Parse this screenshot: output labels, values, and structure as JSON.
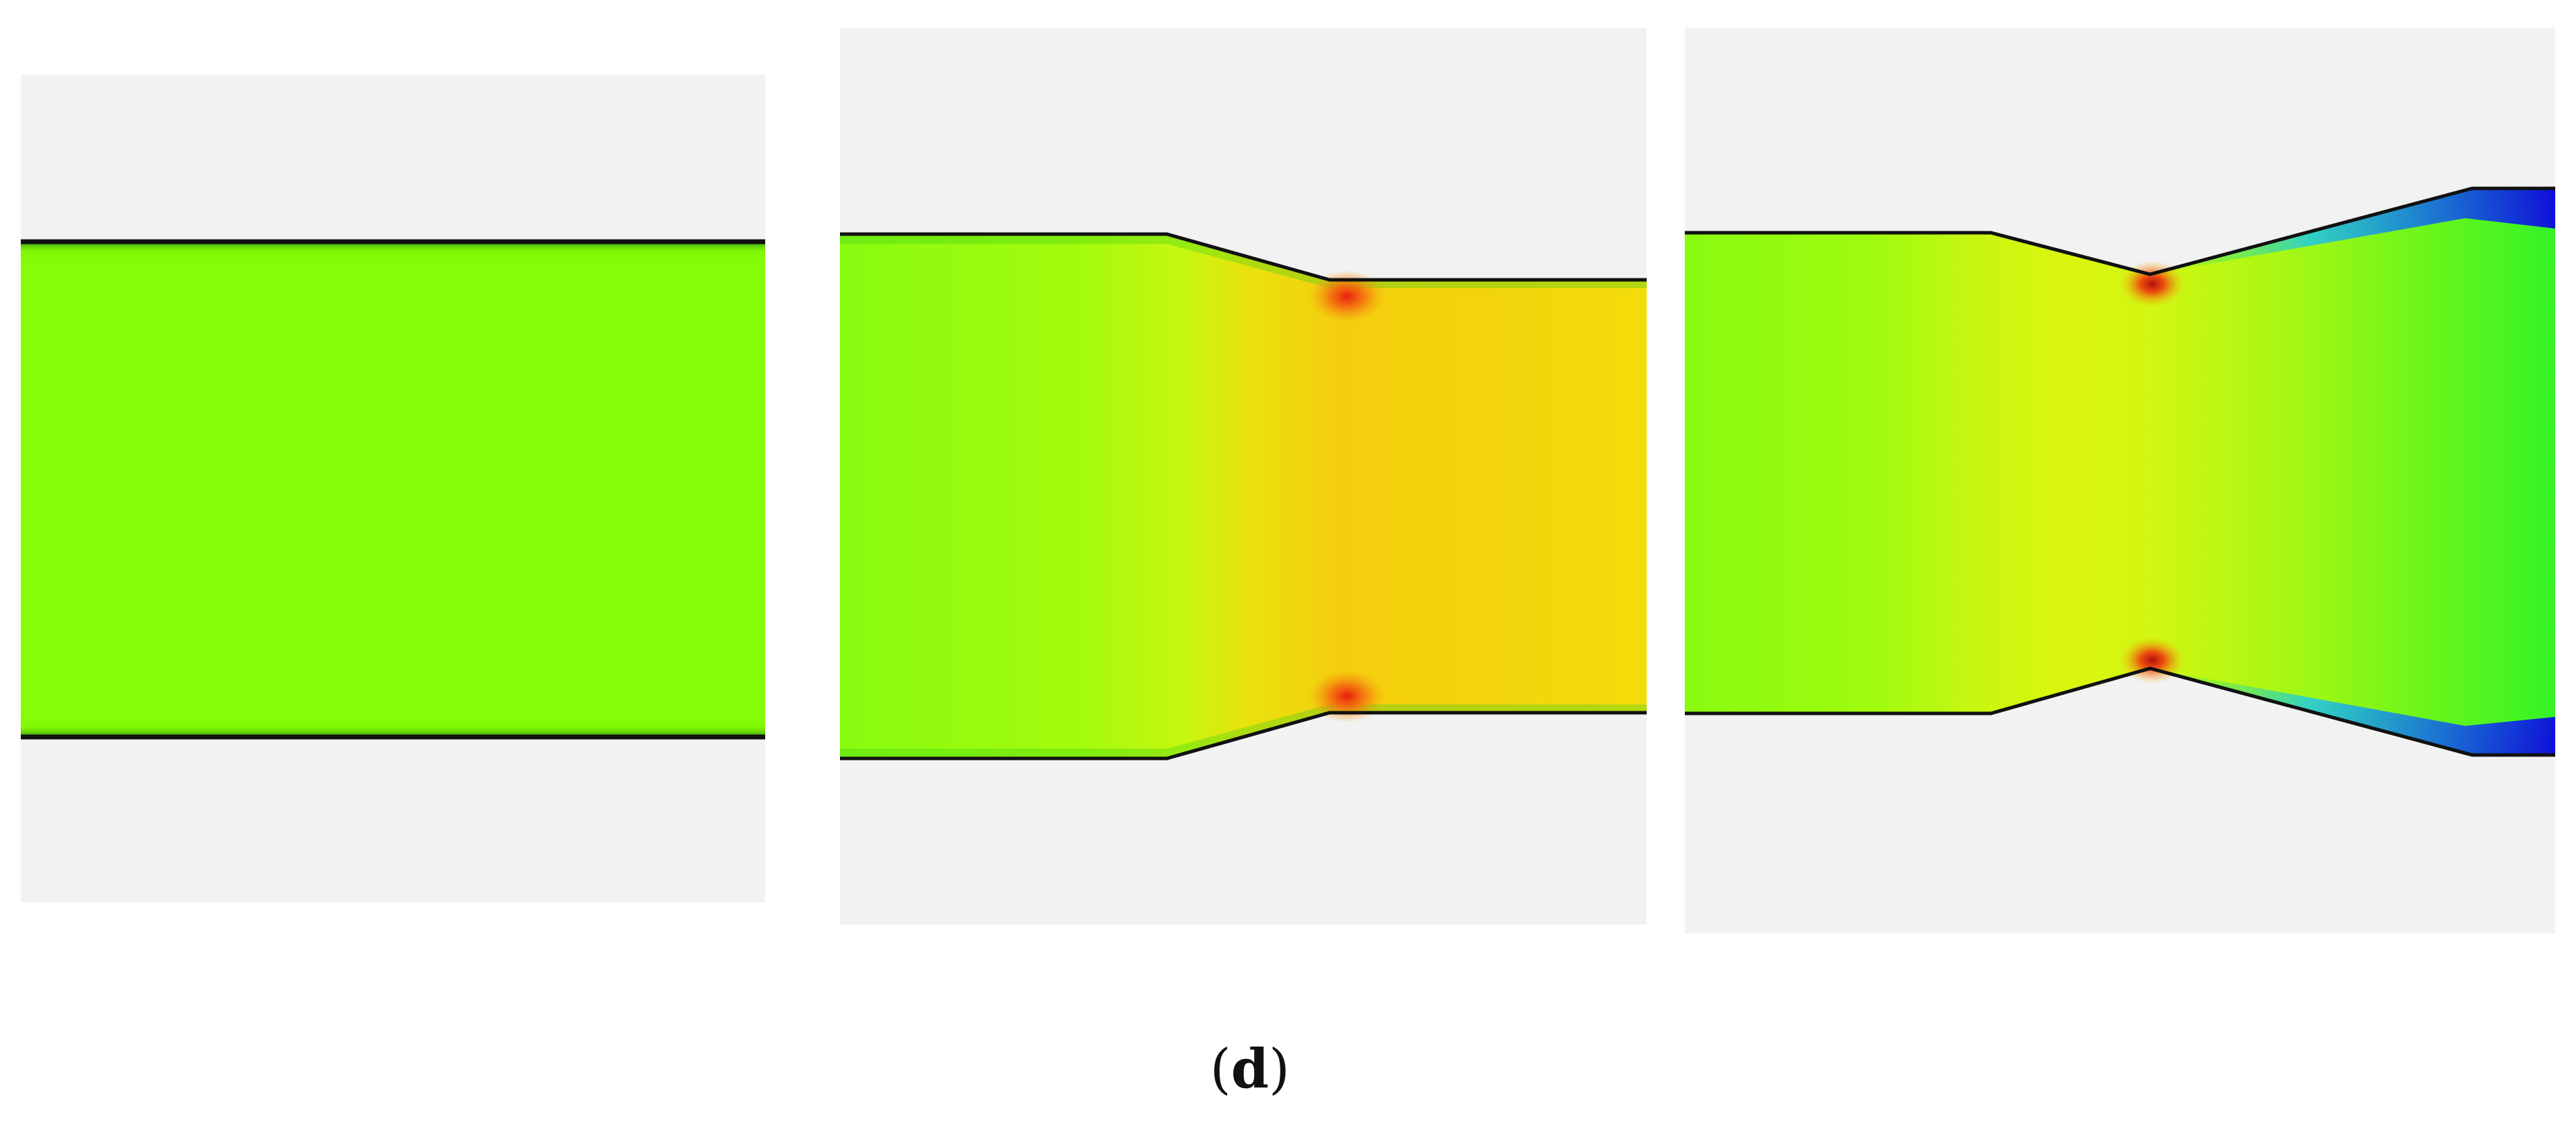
{
  "caption": {
    "open": "(",
    "label": "d",
    "close": ")"
  },
  "colors": {
    "page_background": "#ffffff",
    "panel_background": "#f2f2f2",
    "wall": "#111111",
    "straight_fill": "#86fd08",
    "inlet": "#88fb10",
    "mid_transition": "#c2f712",
    "downstream_fill": "#f4d40c",
    "throat_hot": "#f03010",
    "diffuser_exit": "#3cf524",
    "diffuser_wall_blue": "#1020e0"
  },
  "panels": [
    {
      "name": "straight-channel"
    },
    {
      "name": "contraction-channel"
    },
    {
      "name": "nozzle-diffuser-channel"
    }
  ]
}
